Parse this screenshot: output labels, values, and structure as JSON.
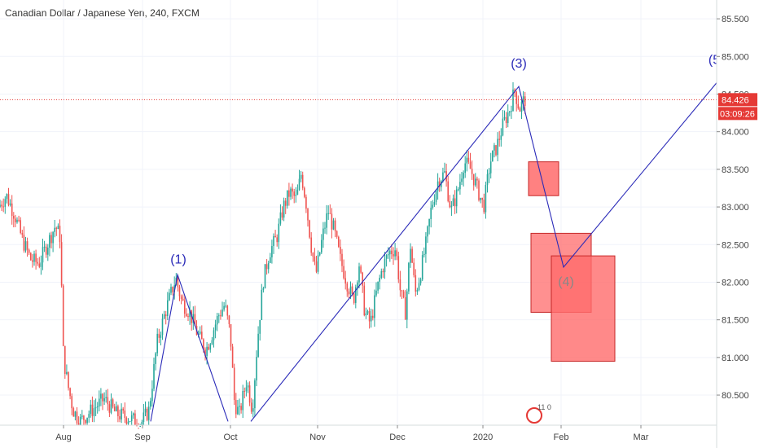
{
  "chart_data": {
    "type": "candlestick",
    "title": "Canadian Dollar / Japanese Yen, 240, FXCM",
    "colors": {
      "up": "#26a69a",
      "down": "#ef5350",
      "wave_line": "#2a2ab8",
      "price_line": "#e53935",
      "box_fill": "#ff6b6b",
      "box_stroke": "#c62828",
      "price_tag": "#e53935"
    },
    "x_axis": {
      "ticks": [
        {
          "label": "Aug",
          "t": 78
        },
        {
          "label": "Sep",
          "t": 175
        },
        {
          "label": "Oct",
          "t": 283
        },
        {
          "label": "Nov",
          "t": 390
        },
        {
          "label": "Dec",
          "t": 488
        },
        {
          "label": "2020",
          "t": 593
        },
        {
          "label": "Feb",
          "t": 689
        },
        {
          "label": "Mar",
          "t": 787
        }
      ],
      "range": [
        0,
        880
      ]
    },
    "y_axis": {
      "ticks": [
        "85.500",
        "85.000",
        "84.500",
        "84.000",
        "83.500",
        "83.000",
        "82.500",
        "82.000",
        "81.500",
        "81.000",
        "80.500"
      ],
      "tick_values": [
        85.5,
        85.0,
        84.5,
        84.0,
        83.5,
        83.0,
        82.5,
        82.0,
        81.5,
        81.0,
        80.5
      ],
      "range": [
        80.1,
        85.75
      ],
      "side": "right"
    },
    "price_series": [
      {
        "t": 0,
        "v": 83.0
      },
      {
        "t": 10,
        "v": 83.15
      },
      {
        "t": 20,
        "v": 82.9
      },
      {
        "t": 30,
        "v": 82.55
      },
      {
        "t": 40,
        "v": 82.3
      },
      {
        "t": 50,
        "v": 82.25
      },
      {
        "t": 60,
        "v": 82.5
      },
      {
        "t": 70,
        "v": 82.75
      },
      {
        "t": 76,
        "v": 82.6
      },
      {
        "t": 80,
        "v": 81.0
      },
      {
        "t": 86,
        "v": 80.6
      },
      {
        "t": 92,
        "v": 80.3
      },
      {
        "t": 100,
        "v": 80.15
      },
      {
        "t": 115,
        "v": 80.3
      },
      {
        "t": 130,
        "v": 80.45
      },
      {
        "t": 145,
        "v": 80.25
      },
      {
        "t": 160,
        "v": 80.2
      },
      {
        "t": 175,
        "v": 80.12
      },
      {
        "t": 185,
        "v": 80.3
      },
      {
        "t": 195,
        "v": 81.2
      },
      {
        "t": 205,
        "v": 81.6
      },
      {
        "t": 212,
        "v": 81.85
      },
      {
        "t": 218,
        "v": 82.05
      },
      {
        "t": 225,
        "v": 81.75
      },
      {
        "t": 235,
        "v": 81.6
      },
      {
        "t": 245,
        "v": 81.3
      },
      {
        "t": 255,
        "v": 81.1
      },
      {
        "t": 262,
        "v": 81.3
      },
      {
        "t": 270,
        "v": 81.55
      },
      {
        "t": 278,
        "v": 81.7
      },
      {
        "t": 285,
        "v": 81.3
      },
      {
        "t": 290,
        "v": 80.4
      },
      {
        "t": 296,
        "v": 80.25
      },
      {
        "t": 305,
        "v": 80.7
      },
      {
        "t": 312,
        "v": 80.3
      },
      {
        "t": 318,
        "v": 81.2
      },
      {
        "t": 325,
        "v": 82.0
      },
      {
        "t": 333,
        "v": 82.4
      },
      {
        "t": 342,
        "v": 82.6
      },
      {
        "t": 350,
        "v": 83.0
      },
      {
        "t": 358,
        "v": 83.2
      },
      {
        "t": 366,
        "v": 83.1
      },
      {
        "t": 372,
        "v": 83.45
      },
      {
        "t": 378,
        "v": 83.05
      },
      {
        "t": 384,
        "v": 82.5
      },
      {
        "t": 390,
        "v": 82.1
      },
      {
        "t": 398,
        "v": 82.6
      },
      {
        "t": 405,
        "v": 82.95
      },
      {
        "t": 412,
        "v": 82.7
      },
      {
        "t": 420,
        "v": 82.3
      },
      {
        "t": 428,
        "v": 82.0
      },
      {
        "t": 436,
        "v": 81.75
      },
      {
        "t": 443,
        "v": 82.25
      },
      {
        "t": 450,
        "v": 81.6
      },
      {
        "t": 457,
        "v": 81.45
      },
      {
        "t": 465,
        "v": 81.9
      },
      {
        "t": 472,
        "v": 82.2
      },
      {
        "t": 480,
        "v": 82.4
      },
      {
        "t": 488,
        "v": 82.45
      },
      {
        "t": 494,
        "v": 81.85
      },
      {
        "t": 500,
        "v": 81.6
      },
      {
        "t": 506,
        "v": 82.5
      },
      {
        "t": 512,
        "v": 81.85
      },
      {
        "t": 518,
        "v": 82.1
      },
      {
        "t": 525,
        "v": 82.5
      },
      {
        "t": 532,
        "v": 83.0
      },
      {
        "t": 540,
        "v": 83.35
      },
      {
        "t": 548,
        "v": 83.45
      },
      {
        "t": 556,
        "v": 82.95
      },
      {
        "t": 564,
        "v": 83.2
      },
      {
        "t": 572,
        "v": 83.6
      },
      {
        "t": 580,
        "v": 83.5
      },
      {
        "t": 588,
        "v": 83.25
      },
      {
        "t": 596,
        "v": 83.0
      },
      {
        "t": 604,
        "v": 83.6
      },
      {
        "t": 612,
        "v": 83.8
      },
      {
        "t": 620,
        "v": 84.1
      },
      {
        "t": 628,
        "v": 84.3
      },
      {
        "t": 634,
        "v": 84.55
      },
      {
        "t": 640,
        "v": 84.3
      },
      {
        "t": 646,
        "v": 84.43
      }
    ],
    "wave_lines": [
      {
        "points": [
          {
            "t": 185,
            "v": 80.15
          },
          {
            "t": 218,
            "v": 82.1
          },
          {
            "t": 280,
            "v": 80.15
          }
        ]
      },
      {
        "points": [
          {
            "t": 308,
            "v": 80.15
          },
          {
            "t": 637,
            "v": 84.6
          },
          {
            "t": 692,
            "v": 82.2
          },
          {
            "t": 880,
            "v": 84.65
          }
        ]
      }
    ],
    "wave_labels": [
      {
        "text": "(1)",
        "t": 219,
        "v": 82.25,
        "tone": "blue"
      },
      {
        "text": "(3)",
        "t": 637,
        "v": 84.85,
        "tone": "blue"
      },
      {
        "text": "(4)",
        "t": 695,
        "v": 81.95,
        "tone": "grey"
      },
      {
        "text": "(5",
        "t": 877,
        "v": 84.9,
        "tone": "blue"
      }
    ],
    "boxes": [
      {
        "t0": 649,
        "t1": 686,
        "v0": 83.15,
        "v1": 83.6,
        "opacity": 0.85
      },
      {
        "t0": 652,
        "t1": 726,
        "v0": 81.6,
        "v1": 82.65,
        "opacity": 0.75
      },
      {
        "t0": 677,
        "t1": 755,
        "v0": 80.95,
        "v1": 82.35,
        "opacity": 0.8
      }
    ],
    "current_price": {
      "value": 84.426,
      "label": "84.426",
      "timer": "03:09:26"
    },
    "logo_text": "11 0"
  }
}
